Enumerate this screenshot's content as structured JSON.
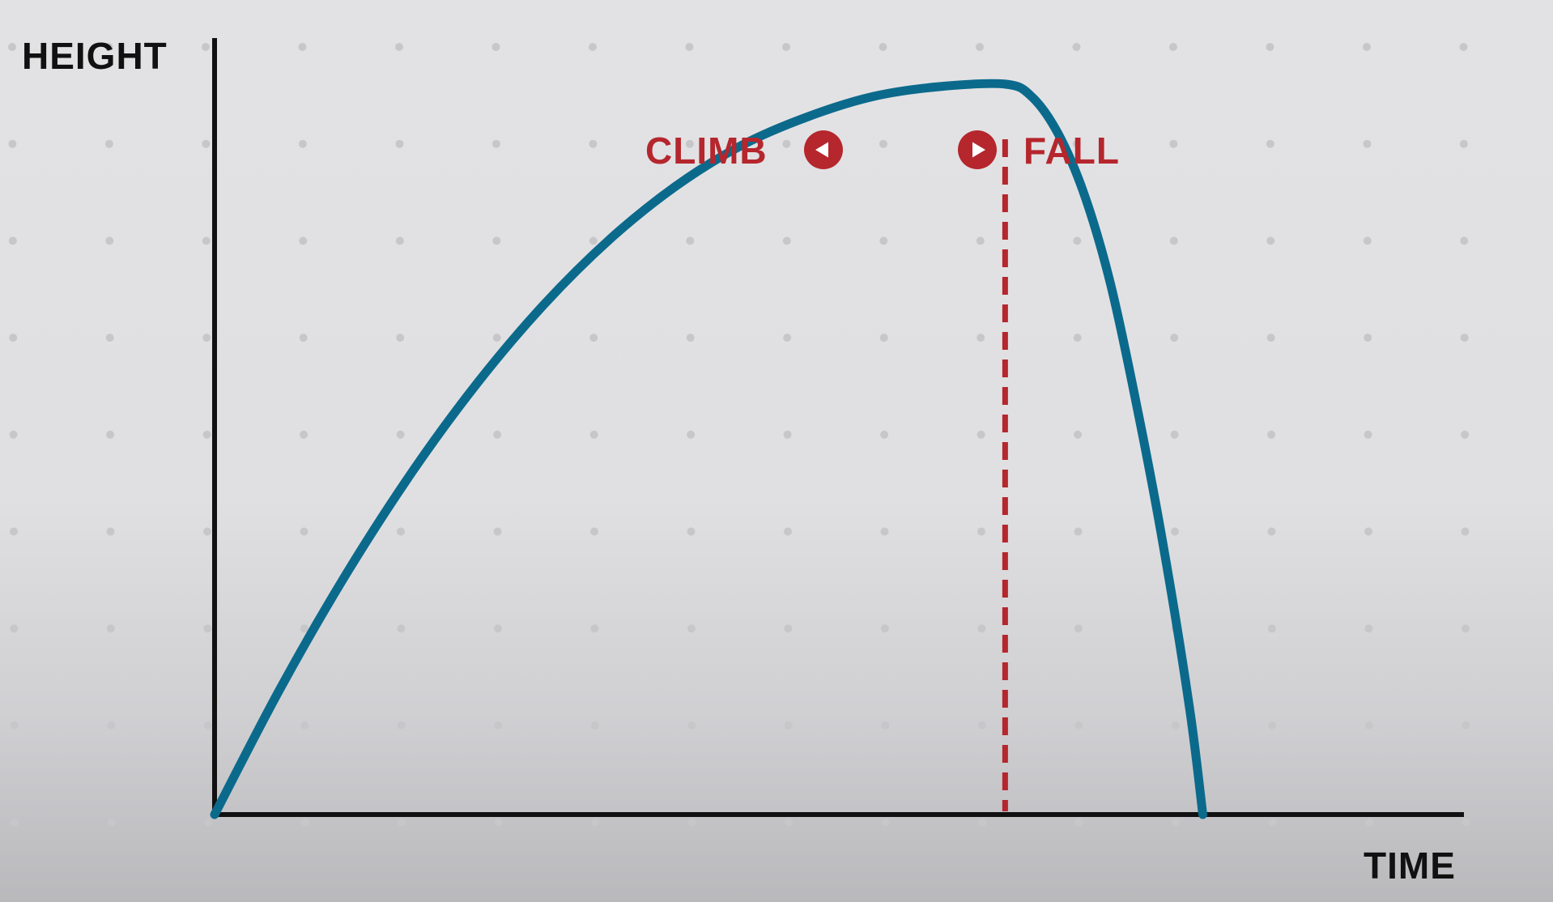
{
  "chart_data": {
    "type": "line",
    "title": "",
    "xlabel": "TIME",
    "ylabel": "HEIGHT",
    "xlim": [
      0,
      10
    ],
    "ylim": [
      0,
      10
    ],
    "grid": "dots",
    "series": [
      {
        "x": [
          0,
          0.5,
          1.0,
          1.5,
          2.0,
          2.5,
          3.0,
          3.5,
          4.0,
          4.5,
          5.0,
          5.5,
          6.0,
          6.2,
          6.4,
          6.6,
          6.8,
          7.0,
          7.2,
          7.4,
          7.5
        ],
        "y": [
          0,
          1.55,
          2.95,
          4.2,
          5.3,
          6.25,
          7.05,
          7.7,
          8.2,
          8.55,
          8.8,
          8.92,
          8.95,
          8.8,
          8.35,
          7.6,
          6.5,
          5.0,
          3.3,
          1.3,
          0
        ]
      }
    ],
    "annotations": [
      {
        "type": "vline",
        "x": 6.0,
        "style": "dashed"
      },
      {
        "text": "CLIMB",
        "icon": "left-arrow-circle-icon"
      },
      {
        "text": "FALL",
        "icon": "right-arrow-circle-icon"
      }
    ]
  },
  "colors": {
    "curve": "#0b6a8c",
    "accent": "#b5262d",
    "axis": "#111111",
    "grid_dot": "#c7c7ca"
  }
}
